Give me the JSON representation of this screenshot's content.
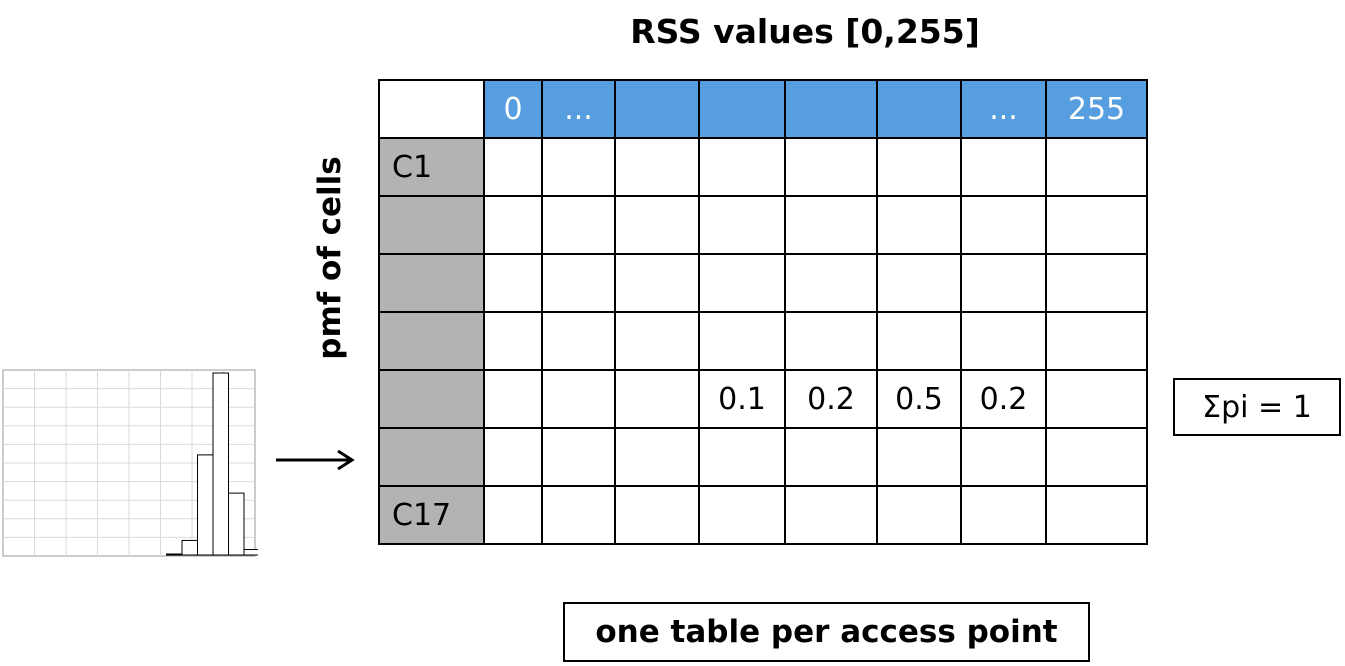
{
  "title": "RSS values [0,255]",
  "y_label": "pmf of cells",
  "table": {
    "header": [
      "",
      "0",
      "...",
      "",
      "",
      "",
      "...",
      "255"
    ],
    "rows": [
      [
        "C1",
        "",
        "",
        "",
        "",
        "",
        "",
        ""
      ],
      [
        "",
        "",
        "",
        "",
        "",
        "",
        "",
        ""
      ],
      [
        "",
        "",
        "",
        "",
        "",
        "",
        "",
        ""
      ],
      [
        "",
        "",
        "",
        "",
        "",
        "",
        "",
        ""
      ],
      [
        "",
        "",
        "",
        "0.1",
        "0.2",
        "0.5",
        "0.2",
        ""
      ],
      [
        "",
        "",
        "",
        "",
        "",
        "",
        "",
        ""
      ],
      [
        "C17",
        "",
        "",
        "",
        "",
        "",
        "",
        ""
      ]
    ]
  },
  "sum_label": "Σpi = 1",
  "caption": "one table per access point",
  "histogram": {
    "bars": [
      0,
      0,
      0,
      0,
      0,
      0.005,
      0.08,
      0.55,
      1.0,
      0.34,
      0.03,
      0.01,
      0.01,
      0.01
    ],
    "colors": {
      "bar_fill": "#ffffff",
      "bar_stroke": "#000000",
      "grid": "#d9d9d9",
      "frame": "#999999"
    }
  },
  "colors": {
    "header": "#569edf",
    "row_label": "#b3b3b3"
  }
}
